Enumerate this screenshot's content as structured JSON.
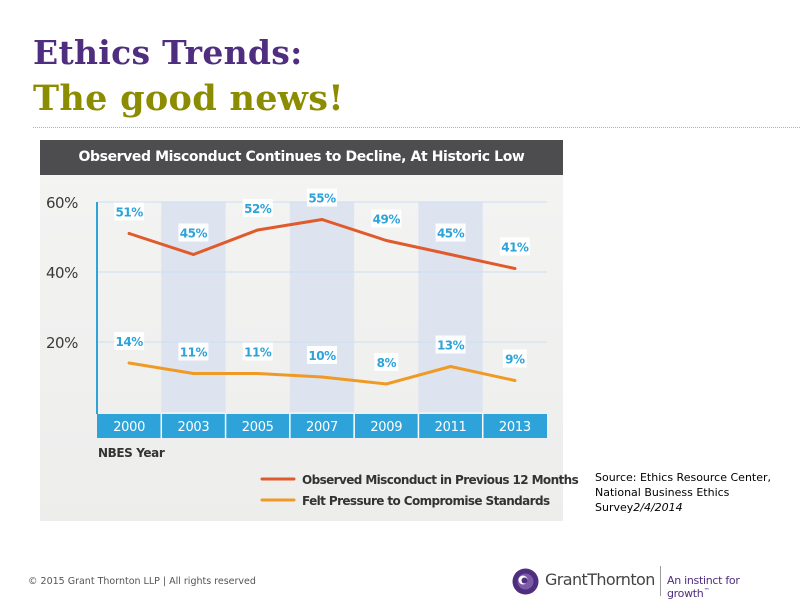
{
  "slide": {
    "title_line1": "Ethics Trends:",
    "title_line2": "The good news!",
    "source_text": "Source: Ethics Resource Center, National Business Ethics Survey",
    "source_date": "2/4/2014",
    "footer": "© 2015 Grant Thornton LLP | All rights reserved",
    "brand_name": "GrantThornton",
    "brand_tagline": "An instinct for growth",
    "brand_tagline_mark": "™"
  },
  "colors": {
    "title_purple": "#4f2d7f",
    "title_olive": "#8c8c00",
    "misconduct_line": "#e05a2b",
    "pressure_line": "#f09a26",
    "axis_blue": "#2da3d9",
    "band": "#dde3ef",
    "header_bg": "#4d4d4f"
  },
  "chart_data": {
    "type": "line",
    "title": "Observed Misconduct Continues to Decline, At Historic Low",
    "xlabel": "NBES Year",
    "categories": [
      "2000",
      "2003",
      "2005",
      "2007",
      "2009",
      "2011",
      "2013"
    ],
    "y_ticks": [
      "60%",
      "40%",
      "20%"
    ],
    "ylim": [
      0,
      60
    ],
    "grid": true,
    "legend_position": "bottom-right",
    "series": [
      {
        "name": "Observed Misconduct in Previous 12 Months",
        "values": [
          51,
          45,
          52,
          55,
          49,
          45,
          41
        ],
        "labels": [
          "51%",
          "45%",
          "52%",
          "55%",
          "49%",
          "45%",
          "41%"
        ]
      },
      {
        "name": "Felt Pressure to Compromise Standards",
        "values": [
          14,
          11,
          11,
          10,
          8,
          13,
          9
        ],
        "labels": [
          "14%",
          "11%",
          "11%",
          "10%",
          "8%",
          "13%",
          "9%"
        ]
      }
    ]
  }
}
